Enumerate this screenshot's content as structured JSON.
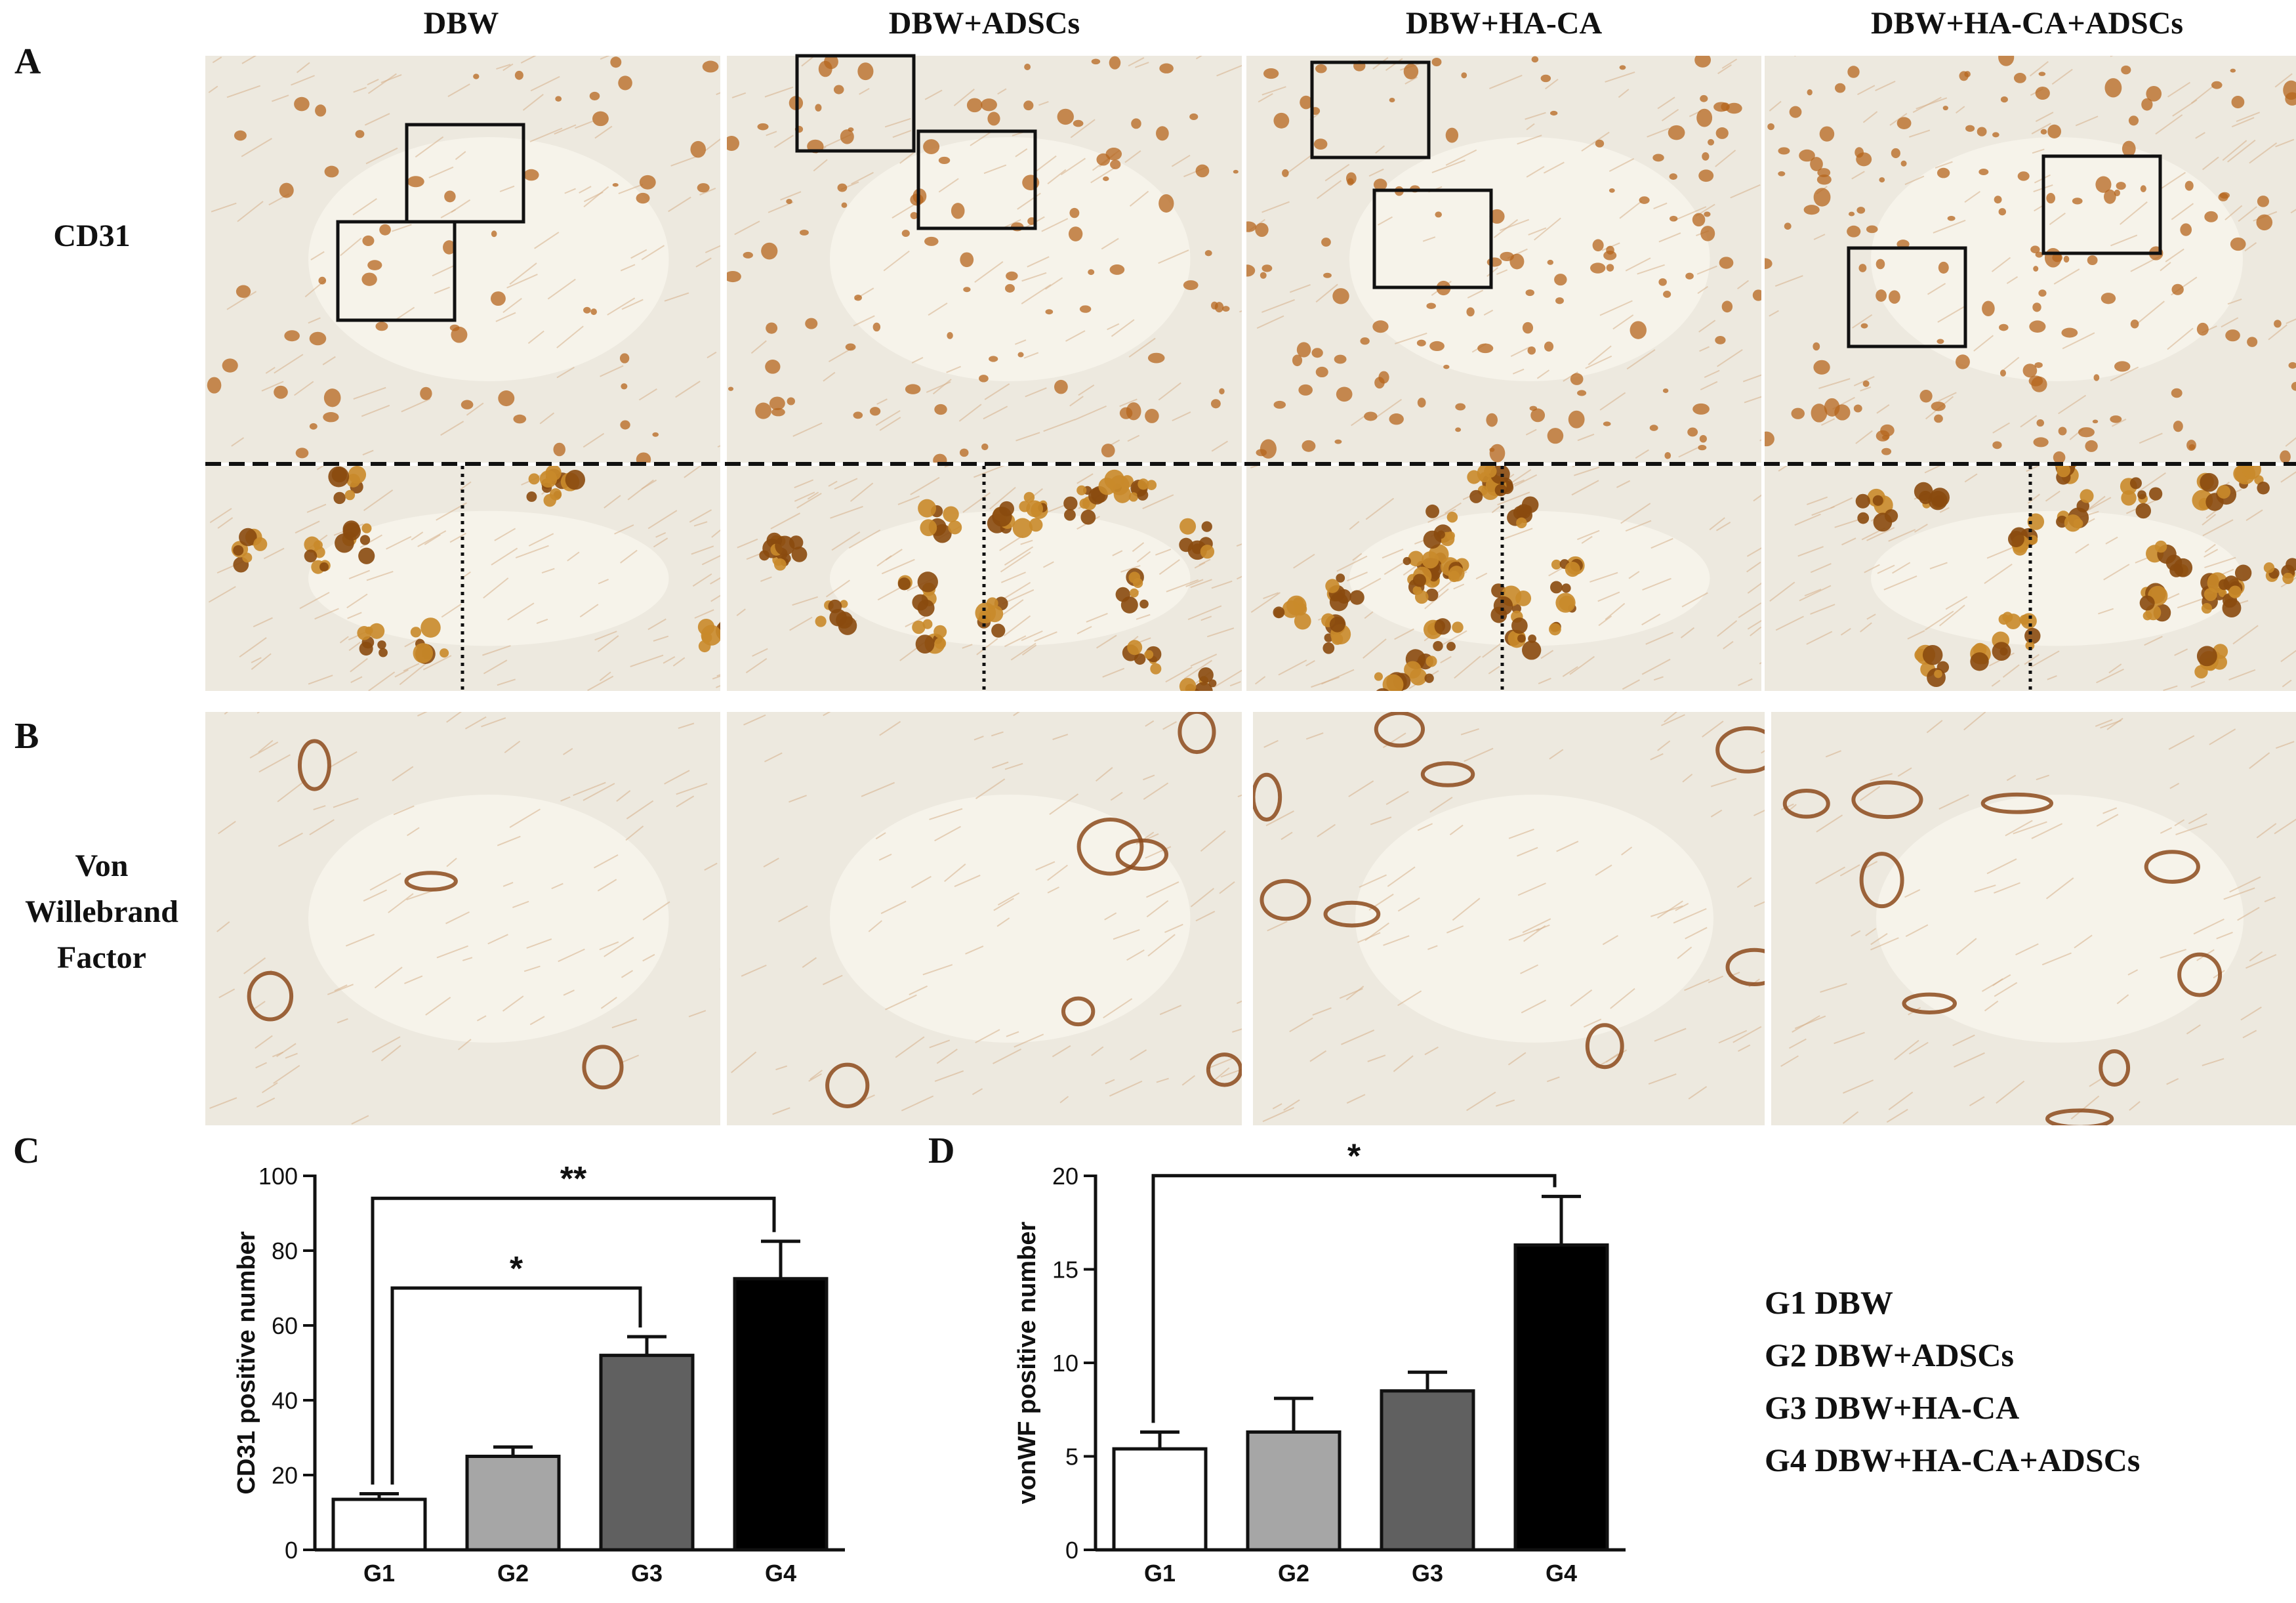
{
  "columns": [
    "DBW",
    "DBW+ADSCs",
    "DBW+HA-CA",
    "DBW+HA-CA+ADSCs"
  ],
  "panel_letters": {
    "a": "A",
    "b": "B",
    "c": "C",
    "d": "D"
  },
  "rows": {
    "cd31": "CD31",
    "vwf": [
      "Von",
      "Willebrand",
      "Factor"
    ]
  },
  "legend": [
    "G1 DBW",
    "G2 DBW+ADSCs",
    "G3 DBW+HA-CA",
    "G4 DBW+HA-CA+ADSCs"
  ],
  "colors": {
    "g1": "#ffffff",
    "g2": "#a6a6a6",
    "g3": "#606060",
    "g4": "#000000",
    "stain": "#b5651d",
    "tissue": "#ede9df"
  },
  "chart_data": [
    {
      "type": "bar",
      "panel": "C",
      "categories": [
        "G1",
        "G2",
        "G3",
        "G4"
      ],
      "values": [
        13.5,
        25,
        52,
        72.5
      ],
      "errors": [
        1.5,
        2.5,
        5,
        10
      ],
      "ylabel": "CD31 positive number",
      "ylim": [
        0,
        100
      ],
      "yticks": [
        0,
        20,
        40,
        60,
        80,
        100
      ],
      "annotations": [
        {
          "from": "G1",
          "to": "G4",
          "label": "**"
        },
        {
          "from": "G1",
          "to": "G3",
          "label": "*"
        }
      ]
    },
    {
      "type": "bar",
      "panel": "D",
      "categories": [
        "G1",
        "G2",
        "G3",
        "G4"
      ],
      "values": [
        5.4,
        6.3,
        8.5,
        16.3
      ],
      "errors": [
        0.9,
        1.8,
        1.0,
        2.6
      ],
      "ylabel": "vonWF positive number",
      "ylim": [
        0,
        20
      ],
      "yticks": [
        0,
        5,
        10,
        15,
        20
      ],
      "annotations": [
        {
          "from": "G1",
          "to": "G4",
          "label": "*"
        }
      ]
    }
  ]
}
